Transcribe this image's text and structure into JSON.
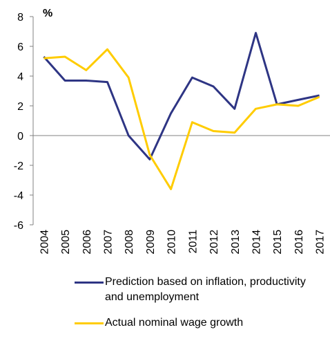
{
  "chart_data": {
    "type": "line",
    "title": "",
    "unit_label": "%",
    "xlabel": "",
    "ylabel": "",
    "ylim": [
      -6,
      8
    ],
    "yticks": [
      "-6",
      "-4",
      "-2",
      "0",
      "2",
      "4",
      "6",
      "8"
    ],
    "categories": [
      "2004",
      "2005",
      "2006",
      "2007",
      "2008",
      "2009",
      "2010",
      "2011",
      "2012",
      "2013",
      "2014",
      "2015",
      "2016",
      "2017"
    ],
    "grid": false,
    "legend_position": "bottom",
    "series": [
      {
        "name": "Prediction based on inflation, productivity and unemployment",
        "color": "#2e3584",
        "values": [
          5.3,
          3.7,
          3.7,
          3.6,
          0.0,
          -1.6,
          1.5,
          3.9,
          3.3,
          1.8,
          6.9,
          2.1,
          2.4,
          2.7
        ]
      },
      {
        "name": "Actual nominal wage growth",
        "color": "#ffcc00",
        "values": [
          5.2,
          5.3,
          4.4,
          5.8,
          3.9,
          -1.3,
          -3.6,
          0.9,
          0.3,
          0.2,
          1.8,
          2.1,
          2.0,
          2.6
        ]
      }
    ]
  },
  "legend": {
    "items": [
      {
        "label": "Prediction based on inflation, productivity and unemployment",
        "color": "#2e3584"
      },
      {
        "label": "Actual nominal wage growth",
        "color": "#ffcc00"
      }
    ]
  }
}
